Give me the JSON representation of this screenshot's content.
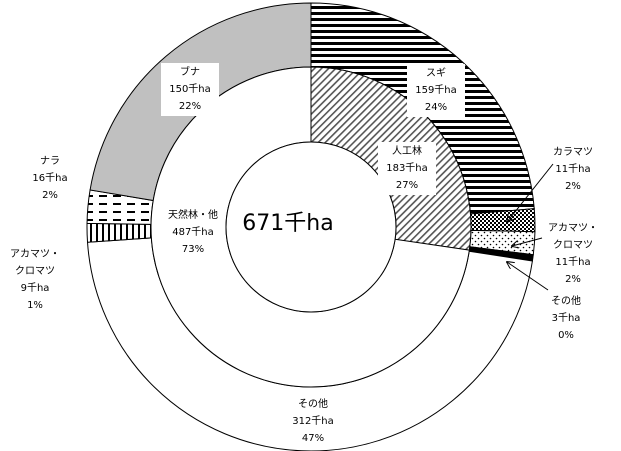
{
  "chart_data": {
    "type": "pie",
    "center_label": "671千ha",
    "colors": {
      "stroke": "#000000",
      "plain": "#ffffff",
      "buna": "#c0c0c0"
    },
    "inner_ring": [
      {
        "name": "人工林",
        "value": 183,
        "unit": "千ha",
        "percent": "27%",
        "pattern": "diag"
      },
      {
        "name": "天然林・他",
        "value": 487,
        "unit": "千ha",
        "percent": "73%",
        "pattern": "plain"
      }
    ],
    "outer_ring": [
      {
        "name": "スギ",
        "value": 159,
        "unit": "千ha",
        "percent": "24%",
        "pattern": "hstripe"
      },
      {
        "name": "カラマツ",
        "value": 11,
        "unit": "千ha",
        "percent": "2%",
        "pattern": "check"
      },
      {
        "name": "アカマツ・クロマツ",
        "value": 11,
        "unit": "千ha",
        "percent": "2%",
        "pattern": "dots"
      },
      {
        "name": "その他",
        "value": 3,
        "unit": "千ha",
        "percent": "0%",
        "pattern": "solid"
      },
      {
        "name": "その他",
        "value": 312,
        "unit": "千ha",
        "percent": "47%",
        "pattern": "plain"
      },
      {
        "name": "アカマツ・クロマツ",
        "value": 9,
        "unit": "千ha",
        "percent": "1%",
        "pattern": "vstripe"
      },
      {
        "name": "ナラ",
        "value": 16,
        "unit": "千ha",
        "percent": "2%",
        "pattern": "dash"
      },
      {
        "name": "ブナ",
        "value": 150,
        "unit": "千ha",
        "percent": "22%",
        "pattern": "gray"
      }
    ],
    "labels": {
      "inner": [
        {
          "lines": [
            "人工林",
            "183千ha",
            "27%"
          ]
        },
        {
          "lines": [
            "天然林・他",
            "487千ha",
            "73%"
          ]
        }
      ],
      "outer": [
        {
          "lines": [
            "スギ",
            "159千ha",
            "24%"
          ]
        },
        {
          "lines": [
            "カラマツ",
            "11千ha",
            "2%"
          ]
        },
        {
          "lines": [
            "アカマツ・",
            "クロマツ",
            "11千ha",
            "2%"
          ]
        },
        {
          "lines": [
            "その他",
            "3千ha",
            "0%"
          ]
        },
        {
          "lines": [
            "その他",
            "312千ha",
            "47%"
          ]
        },
        {
          "lines": [
            "アカマツ・",
            "クロマツ",
            "9千ha",
            "1%"
          ]
        },
        {
          "lines": [
            "ナラ",
            "16千ha",
            "2%"
          ]
        },
        {
          "lines": [
            "ブナ",
            "150千ha",
            "22%"
          ]
        }
      ]
    }
  }
}
